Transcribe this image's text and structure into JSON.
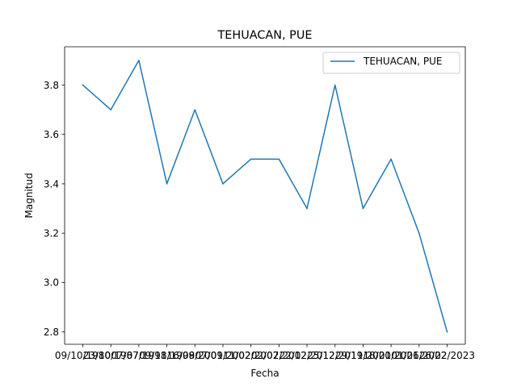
{
  "chart_data": {
    "type": "line",
    "title": "TEHUACAN, PUE",
    "xlabel": "Fecha",
    "ylabel": "Magnitud",
    "categories": [
      "09/10/1980",
      "23/10/1987",
      "07/07/1998",
      "09/11/1999",
      "16/08/2001",
      "07/09/2002",
      "11/02/2007",
      "02/02/2012",
      "22/02/2012",
      "25/12/2019",
      "29/11/2020",
      "18/01/2021",
      "01/06/2022",
      "26/02/2023"
    ],
    "series": [
      {
        "name": "TEHUACAN, PUE",
        "color": "#1f77b4",
        "values": [
          3.8,
          3.7,
          3.9,
          3.4,
          3.7,
          3.4,
          3.5,
          3.5,
          3.3,
          3.8,
          3.3,
          3.5,
          3.2,
          2.8
        ]
      }
    ],
    "ylim": [
      2.75,
      3.955
    ],
    "yticks": [
      2.8,
      3.0,
      3.2,
      3.4,
      3.6,
      3.8
    ],
    "ytick_labels": [
      "2.8",
      "3.0",
      "3.2",
      "3.4",
      "3.6",
      "3.8"
    ],
    "grid": false,
    "legend_position": "upper right"
  }
}
